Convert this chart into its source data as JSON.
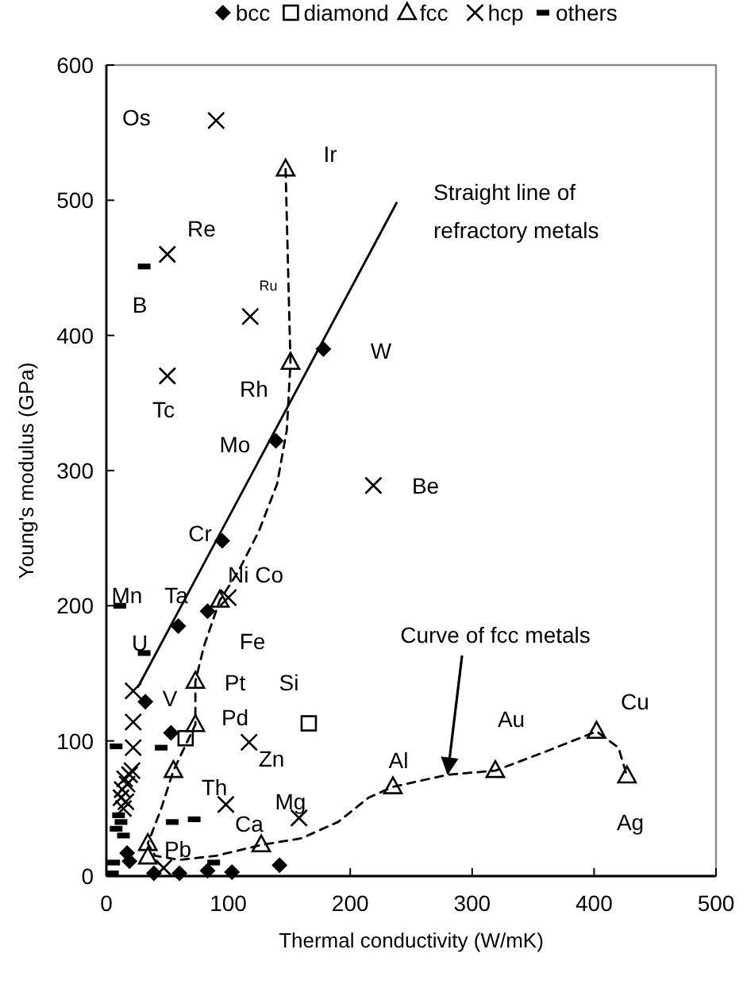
{
  "chart_data": {
    "type": "scatter",
    "xlabel": "Thermal conductivity (W/mK)",
    "ylabel": "Young's modulus (GPa)",
    "xlim": [
      0,
      500
    ],
    "ylim": [
      0,
      600
    ],
    "xticks": [
      0,
      100,
      200,
      300,
      400,
      500
    ],
    "yticks": [
      0,
      100,
      200,
      300,
      400,
      500,
      600
    ],
    "grid": false,
    "legend": "top",
    "series": [
      {
        "name": "bcc",
        "marker": "diamond",
        "color": "#000000",
        "x": [
          178,
          139,
          95,
          59,
          83,
          32,
          53,
          17,
          19,
          39,
          60,
          83,
          103,
          142
        ],
        "values": [
          390,
          322,
          248,
          185,
          196,
          129,
          106,
          17,
          11,
          2,
          2,
          4,
          3,
          8
        ]
      },
      {
        "name": "diamond",
        "marker": "square",
        "color": "#000000",
        "x": [
          166,
          65
        ],
        "values": [
          113,
          102
        ]
      },
      {
        "name": "fcc",
        "marker": "triangle",
        "color": "#000000",
        "x": [
          147,
          151,
          93,
          73,
          73,
          55,
          34,
          34,
          127,
          235,
          319,
          402,
          427
        ],
        "values": [
          523,
          380,
          204,
          144,
          112,
          78,
          24,
          14,
          23,
          66,
          78,
          107,
          74
        ]
      },
      {
        "name": "hcp",
        "marker": "cross",
        "color": "#000000",
        "x": [
          90,
          50,
          118,
          50,
          219,
          100,
          117,
          158,
          98,
          22,
          22,
          22,
          15,
          17,
          13,
          19,
          12,
          16,
          21,
          14,
          47
        ],
        "values": [
          559,
          460,
          414,
          370,
          289,
          206,
          99,
          43,
          53,
          137,
          114,
          95,
          72,
          68,
          64,
          75,
          58,
          55,
          78,
          50,
          6
        ]
      },
      {
        "name": "others",
        "color": "#000000",
        "x": [
          31,
          11,
          31,
          8,
          45,
          54,
          72,
          6,
          5,
          88,
          10,
          12,
          8,
          14
        ],
        "values": [
          451,
          200,
          165,
          96,
          95,
          40,
          42,
          10,
          2,
          10,
          45,
          40,
          35,
          30
        ]
      },
      {
        "type": "line",
        "line_style": "solid",
        "color": "#000000",
        "x": [
          26,
          238
        ],
        "values": [
          140,
          498
        ]
      },
      {
        "type": "line",
        "line_style": "dashed",
        "color": "#000000",
        "x": [
          147,
          149,
          151,
          148,
          140,
          125,
          108,
          93,
          80,
          73,
          73,
          64,
          55,
          45,
          34,
          40,
          60,
          90,
          127,
          160,
          190,
          215,
          235,
          280,
          319,
          360,
          402,
          420,
          427
        ],
        "values": [
          523,
          450,
          380,
          330,
          290,
          255,
          225,
          204,
          170,
          144,
          112,
          95,
          78,
          50,
          24,
          15,
          12,
          15,
          23,
          28,
          40,
          58,
          66,
          75,
          78,
          92,
          107,
          95,
          74
        ]
      }
    ],
    "annotations": [
      "Os",
      "Ir",
      "Re",
      "Ru",
      "B",
      "Rh",
      "Tc",
      "W",
      "Mo",
      "Be",
      "Cr",
      "Ni Co",
      "Mn",
      "Ta",
      "Fe",
      "U",
      "Pt",
      "Si",
      "V",
      "Pd",
      "Zn",
      "Th",
      "Mg",
      "Ca",
      "Pb",
      "Al",
      "Au",
      "Cu",
      "Ag",
      "Straight line of\nrefractory metals",
      {
        "text": "Curve of fcc metals",
        "x": 280,
        "y": 76
      }
    ]
  }
}
